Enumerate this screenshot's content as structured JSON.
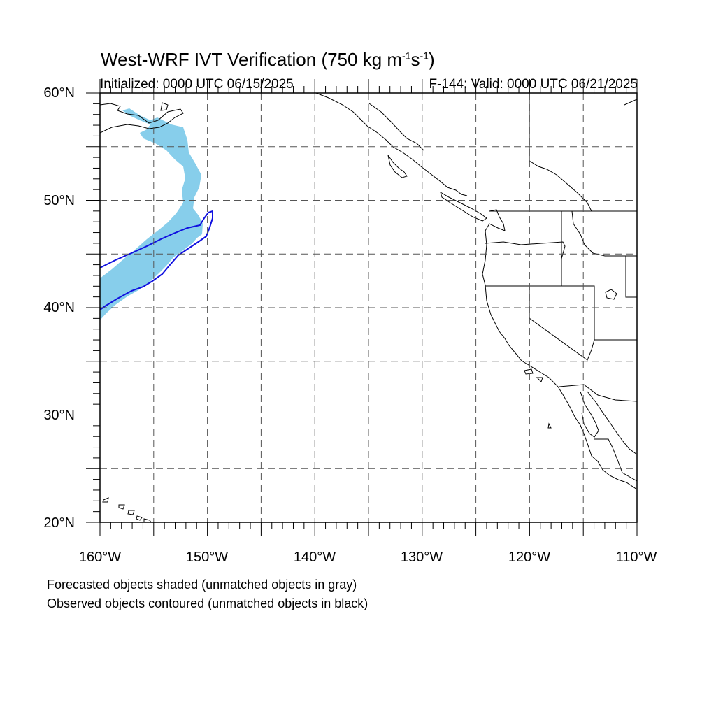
{
  "title": {
    "prefix": "West-WRF IVT Verification (750 kg m",
    "exp1": "-1",
    "mid": "s",
    "exp2": "-1",
    "suffix": ")"
  },
  "subtitle": {
    "initialized": "Initialized: 0000 UTC 06/15/2025",
    "valid": "F-144: Valid: 0000 UTC 06/21/2025"
  },
  "axes": {
    "lon_min": -160,
    "lon_max": -110,
    "lat_min": 20,
    "lat_max": 60,
    "lat_labels": [
      "60°N",
      "50°N",
      "40°N",
      "30°N",
      "20°N"
    ],
    "lon_labels": [
      "160°W",
      "150°W",
      "140°W",
      "130°W",
      "120°W",
      "110°W"
    ],
    "grid_lon_values": [
      -155,
      -150,
      -145,
      -140,
      -135,
      -130,
      -125,
      -120,
      -115
    ],
    "grid_lat_values": [
      25,
      30,
      35,
      40,
      45,
      50,
      55
    ],
    "grid_style": "dashed"
  },
  "legend_notes": [
    "Forecasted objects shaded (unmatched objects in gray)",
    "Observed objects contoured (unmatched objects in black)"
  ],
  "colors": {
    "forecast_fill": "#87ceeb",
    "observed_contour": "#1010e0",
    "coastline": "#000000",
    "grid": "#555555"
  }
}
